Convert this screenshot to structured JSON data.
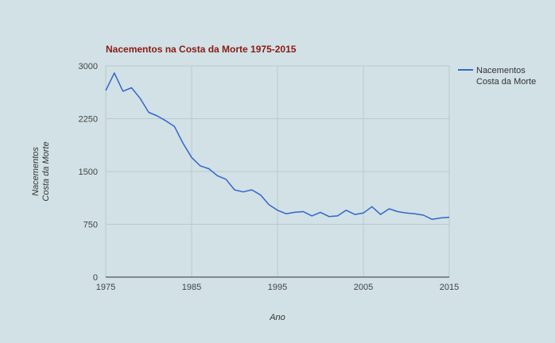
{
  "chart_data": {
    "type": "line",
    "title": "Nacementos na Costa da Morte 1975-2015",
    "xlabel": "Ano",
    "ylabel_lines": [
      "Nacementos",
      "Costa da Morte"
    ],
    "xlim": [
      1975,
      2015
    ],
    "ylim": [
      0,
      3000
    ],
    "x_ticks": [
      1975,
      1985,
      1995,
      2005,
      2015
    ],
    "y_ticks": [
      0,
      750,
      1500,
      2250,
      3000
    ],
    "y_tick_labels": [
      "0",
      "750",
      "1500",
      "2250",
      "3000"
    ],
    "grid": true,
    "legend_position": "right",
    "series": [
      {
        "name_lines": [
          "Nacementos",
          "Costa da Morte"
        ],
        "color": "#3366cc",
        "x": [
          1975,
          1976,
          1977,
          1978,
          1979,
          1980,
          1981,
          1982,
          1983,
          1984,
          1985,
          1986,
          1987,
          1988,
          1989,
          1990,
          1991,
          1992,
          1993,
          1994,
          1995,
          1996,
          1997,
          1998,
          1999,
          2000,
          2001,
          2002,
          2003,
          2004,
          2005,
          2006,
          2007,
          2008,
          2009,
          2010,
          2011,
          2012,
          2013,
          2014,
          2015
        ],
        "values": [
          2650,
          2900,
          2640,
          2690,
          2540,
          2340,
          2290,
          2220,
          2140,
          1900,
          1700,
          1580,
          1540,
          1440,
          1390,
          1240,
          1210,
          1240,
          1170,
          1030,
          950,
          900,
          920,
          930,
          870,
          920,
          860,
          870,
          950,
          890,
          910,
          1000,
          890,
          970,
          930,
          910,
          900,
          880,
          820,
          840,
          850
        ]
      }
    ]
  }
}
